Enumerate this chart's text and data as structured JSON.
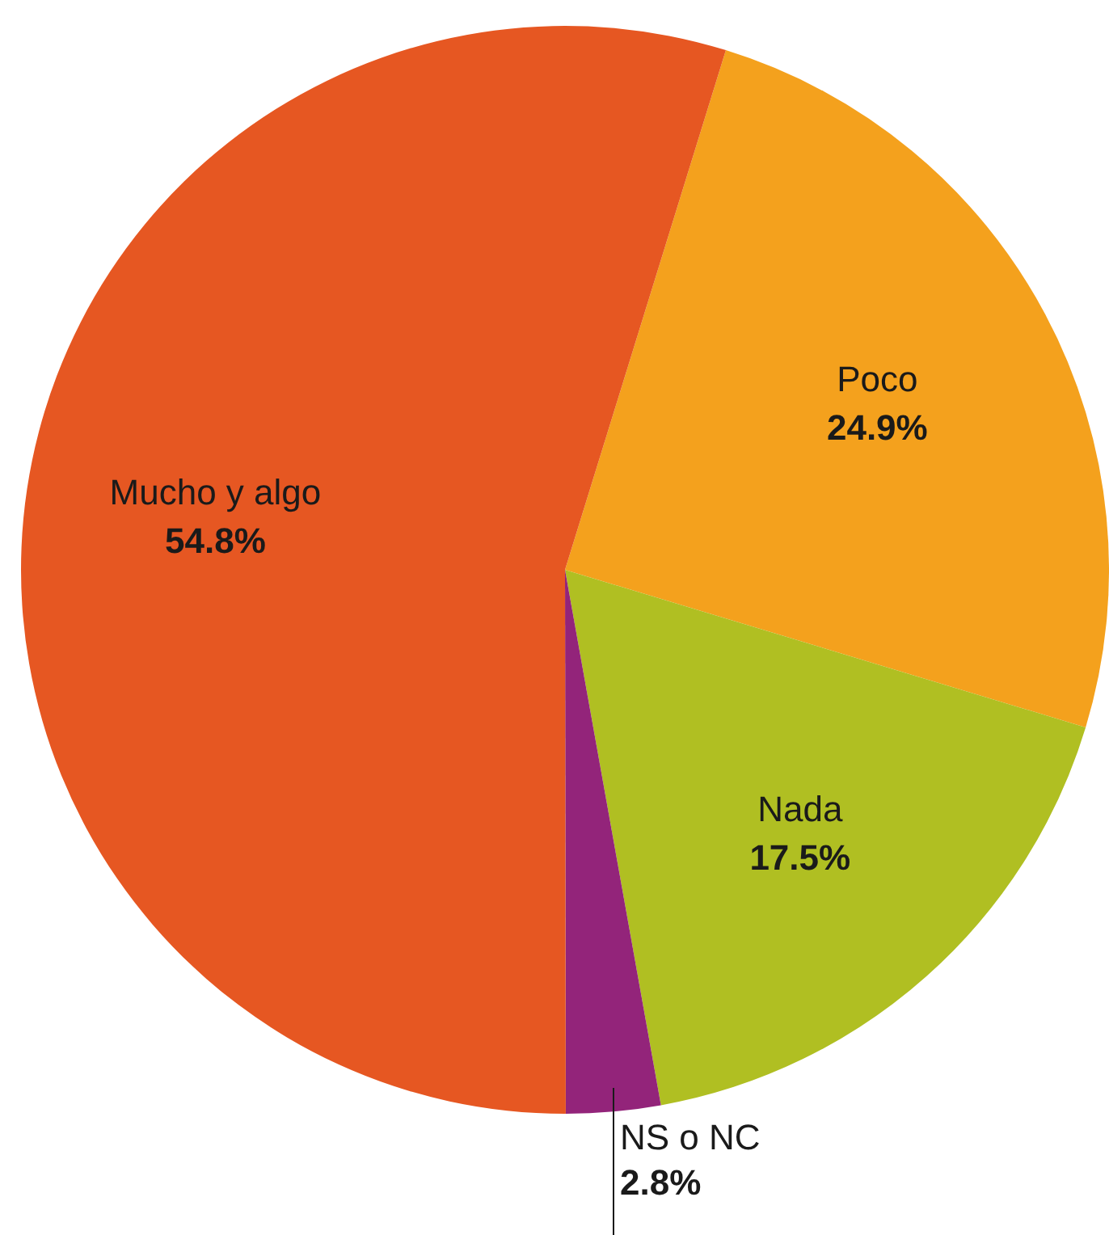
{
  "chart_data": {
    "type": "pie",
    "categories": [
      "Poco",
      "Nada",
      "NS o NC",
      "Mucho y algo"
    ],
    "values": [
      24.9,
      17.5,
      2.8,
      54.8
    ],
    "colors": [
      "#f4a11d",
      "#b0bf22",
      "#93247a",
      "#e65722"
    ],
    "value_labels": [
      "24.9%",
      "17.5%",
      "2.8%",
      "54.8%"
    ],
    "legend": false
  }
}
